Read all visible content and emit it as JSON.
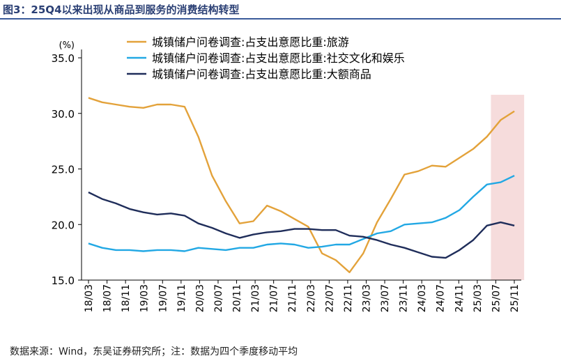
{
  "figure_title": "图3：25Q4以来出现从商品到服务的消费结构转型",
  "source_note": "数据来源：Wind，东吴证券研究所；注：数据为四个季度移动平均",
  "chart_data": {
    "type": "line",
    "title": "",
    "ylabel": "(%)",
    "xlabel": "",
    "ylim": [
      15.0,
      35.0
    ],
    "yticks": [
      "15.0",
      "20.0",
      "25.0",
      "30.0",
      "35.0"
    ],
    "xtick_labels": [
      "18/03",
      "18/07",
      "18/11",
      "19/03",
      "19/07",
      "19/11",
      "20/03",
      "20/07",
      "20/11",
      "21/03",
      "21/07",
      "21/11",
      "22/03",
      "22/07",
      "22/11",
      "23/03",
      "23/07",
      "23/11",
      "24/03",
      "24/07",
      "24/11",
      "25/03",
      "25/07",
      "25/11"
    ],
    "x": [
      "18/03",
      "18/06",
      "18/09",
      "18/12",
      "19/03",
      "19/06",
      "19/09",
      "19/12",
      "20/03",
      "20/06",
      "20/09",
      "20/12",
      "21/03",
      "21/06",
      "21/09",
      "21/12",
      "22/03",
      "22/06",
      "22/09",
      "22/12",
      "23/03",
      "23/06",
      "23/09",
      "23/12",
      "24/03",
      "24/06",
      "24/09",
      "24/12",
      "25/03",
      "25/06",
      "25/09",
      "25/12"
    ],
    "highlight": {
      "from": "25/09",
      "to": "25/12",
      "color": "#f6dcdc"
    },
    "legend_position": "top",
    "series": [
      {
        "name": "城镇储户问卷调查:占支出意愿比重:旅游",
        "color": "#e3a23a",
        "values": [
          31.4,
          31.0,
          30.8,
          30.6,
          30.5,
          30.8,
          30.8,
          30.6,
          27.9,
          24.4,
          22.1,
          20.1,
          20.3,
          21.7,
          21.2,
          20.5,
          19.8,
          17.4,
          16.8,
          15.7,
          17.4,
          20.2,
          22.3,
          24.5,
          24.8,
          25.3,
          25.2,
          26.0,
          26.8,
          27.9,
          29.4,
          30.2
        ]
      },
      {
        "name": "城镇储户问卷调查:占支出意愿比重:社交文化和娱乐",
        "color": "#22a8e4",
        "values": [
          18.3,
          17.9,
          17.7,
          17.7,
          17.6,
          17.7,
          17.7,
          17.6,
          17.9,
          17.8,
          17.7,
          17.9,
          17.9,
          18.2,
          18.3,
          18.2,
          17.9,
          18.0,
          18.2,
          18.2,
          18.7,
          19.2,
          19.4,
          20.0,
          20.1,
          20.2,
          20.6,
          21.3,
          22.5,
          23.6,
          23.8,
          24.4
        ]
      },
      {
        "name": "城镇储户问卷调查:占支出意愿比重:大额商品",
        "color": "#1f2d5a",
        "values": [
          22.9,
          22.3,
          21.9,
          21.4,
          21.1,
          20.9,
          21.0,
          20.8,
          20.1,
          19.7,
          19.2,
          18.8,
          19.1,
          19.3,
          19.4,
          19.6,
          19.6,
          19.5,
          19.5,
          19.0,
          18.9,
          18.6,
          18.2,
          17.9,
          17.5,
          17.1,
          17.0,
          17.7,
          18.6,
          19.9,
          20.2,
          19.9
        ]
      }
    ]
  }
}
